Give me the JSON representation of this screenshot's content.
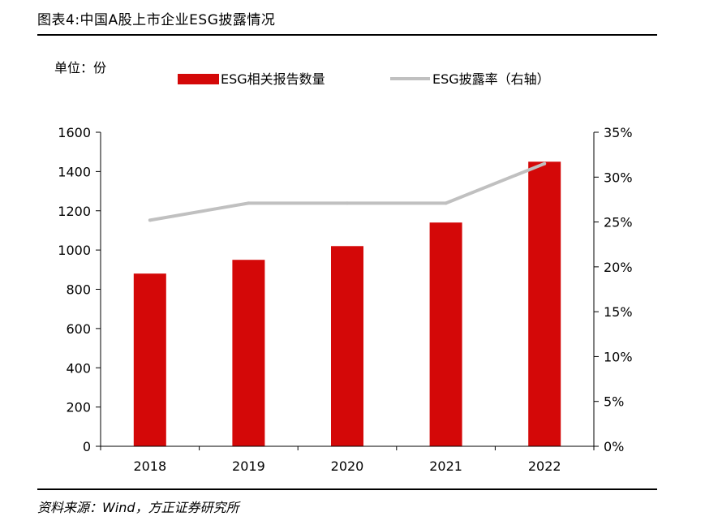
{
  "header": {
    "title": "图表4:中国A股上市企业ESG披露情况",
    "unit_label": "单位：份"
  },
  "footer": {
    "source": "资料来源：Wind，方正证券研究所"
  },
  "colors": {
    "bar": "#d40808",
    "line": "#c0c0c0",
    "axis": "#000000"
  },
  "chart_data": {
    "type": "bar",
    "categories": [
      "2018",
      "2019",
      "2020",
      "2021",
      "2022"
    ],
    "series": [
      {
        "name": "ESG相关报告数量",
        "type": "bar",
        "axis": "left",
        "values": [
          880,
          950,
          1020,
          1140,
          1450
        ]
      },
      {
        "name": "ESG披露率（右轴）",
        "type": "line",
        "axis": "right",
        "values": [
          25.2,
          27.1,
          27.1,
          27.1,
          31.5
        ]
      }
    ],
    "y_left": {
      "min": 0,
      "max": 1600,
      "ticks": [
        "0",
        "200",
        "400",
        "600",
        "800",
        "1000",
        "1200",
        "1400",
        "1600"
      ]
    },
    "y_right": {
      "min": 0,
      "max": 35,
      "ticks": [
        "0%",
        "5%",
        "10%",
        "15%",
        "20%",
        "25%",
        "30%",
        "35%"
      ]
    },
    "grid": false,
    "legend_position": "top"
  }
}
